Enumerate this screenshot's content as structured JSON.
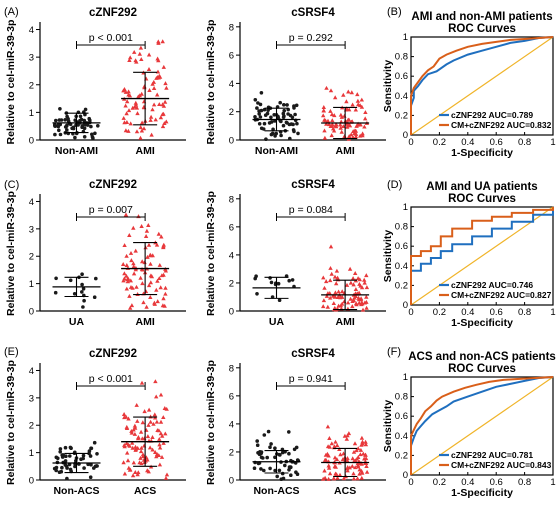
{
  "colors": {
    "black_group": "#1a1a1a",
    "red_group": "#e8383b",
    "roc_blue": "#1f6fbf",
    "roc_orange": "#d95f1a",
    "diagonal": "#f0b429"
  },
  "chart_data": [
    {
      "panel_label": "(A)",
      "type": "scatter",
      "title": "cZNF292",
      "ylabel": "Relative to cel-miR-39-3p",
      "categories": [
        "Non-AMI",
        "AMI"
      ],
      "yticks": [
        "0",
        "1",
        "2",
        "3",
        "4"
      ],
      "ylim": [
        0,
        4.2
      ],
      "p_value": "p < 0.001",
      "groups": [
        {
          "mean": 0.62,
          "sd": 0.35,
          "n": 70,
          "max": 2.2,
          "shape": "circle"
        },
        {
          "mean": 1.5,
          "sd": 0.95,
          "n": 85,
          "max": 3.8,
          "shape": "triangle"
        }
      ]
    },
    {
      "panel_label": "",
      "type": "scatter",
      "title": "cSRSF4",
      "ylabel": "Relative to cel-miR-39-3p",
      "categories": [
        "Non-AMI",
        "AMI"
      ],
      "yticks": [
        "0",
        "2",
        "4",
        "6",
        "8"
      ],
      "ylim": [
        0,
        8.2
      ],
      "p_value": "p = 0.292",
      "groups": [
        {
          "mean": 1.45,
          "sd": 0.8,
          "n": 70,
          "max": 3.4,
          "shape": "circle"
        },
        {
          "mean": 1.2,
          "sd": 1.1,
          "n": 85,
          "max": 6.2,
          "shape": "triangle"
        }
      ]
    },
    {
      "panel_label": "(B)",
      "type": "line",
      "title": "AMI and non-AMI patients ROC Curves",
      "xlabel": "1-Specificity",
      "ylabel": "Sensitivity",
      "xlim": [
        0,
        1
      ],
      "ylim": [
        0,
        1
      ],
      "xticks": [
        "0",
        "0.2",
        "0.4",
        "0.6",
        "0.8",
        "1"
      ],
      "yticks": [
        "0",
        "0.2",
        "0.4",
        "0.6",
        "0.8",
        "1"
      ],
      "series": [
        {
          "name": "cZNF292 AUC=0.789",
          "x": [
            0,
            0,
            0.02,
            0.02,
            0.05,
            0.08,
            0.12,
            0.18,
            0.25,
            0.3,
            0.4,
            0.5,
            0.6,
            0.7,
            0.8,
            0.9,
            1
          ],
          "y": [
            0,
            0.3,
            0.38,
            0.45,
            0.5,
            0.56,
            0.62,
            0.65,
            0.72,
            0.76,
            0.82,
            0.86,
            0.9,
            0.94,
            0.96,
            0.99,
            1
          ]
        },
        {
          "name": "CM+cZNF292 AUC=0.832",
          "x": [
            0,
            0,
            0.02,
            0.04,
            0.08,
            0.12,
            0.16,
            0.2,
            0.25,
            0.32,
            0.4,
            0.5,
            0.6,
            0.7,
            0.8,
            0.9,
            1
          ],
          "y": [
            0,
            0.4,
            0.48,
            0.52,
            0.6,
            0.66,
            0.7,
            0.78,
            0.82,
            0.86,
            0.9,
            0.93,
            0.95,
            0.97,
            0.98,
            0.99,
            1
          ]
        }
      ]
    },
    {
      "panel_label": "(C)",
      "type": "scatter",
      "title": "cZNF292",
      "ylabel": "Relative to cel-miR-39-3p",
      "categories": [
        "UA",
        "AMI"
      ],
      "yticks": [
        "0",
        "1",
        "2",
        "3",
        "4"
      ],
      "ylim": [
        0,
        4.2
      ],
      "p_value": "p = 0.007",
      "groups": [
        {
          "mean": 0.88,
          "sd": 0.35,
          "n": 14,
          "max": 1.4,
          "shape": "circle"
        },
        {
          "mean": 1.55,
          "sd": 0.95,
          "n": 85,
          "max": 3.8,
          "shape": "triangle"
        }
      ]
    },
    {
      "panel_label": "",
      "type": "scatter",
      "title": "cSRSF4",
      "ylabel": "Relative to cel-miR-39-3p",
      "categories": [
        "UA",
        "AMI"
      ],
      "yticks": [
        "0",
        "2",
        "4",
        "6",
        "8"
      ],
      "ylim": [
        0,
        8.2
      ],
      "p_value": "p = 0.084",
      "groups": [
        {
          "mean": 1.65,
          "sd": 0.75,
          "n": 14,
          "max": 2.5,
          "shape": "circle"
        },
        {
          "mean": 1.15,
          "sd": 1.05,
          "n": 85,
          "max": 6.0,
          "shape": "triangle"
        }
      ]
    },
    {
      "panel_label": "(D)",
      "type": "line",
      "title": "AMI and UA patients ROC Curves",
      "xlabel": "1-Specificity",
      "ylabel": "Sensitivity",
      "xlim": [
        0,
        1
      ],
      "ylim": [
        0,
        1
      ],
      "xticks": [
        "0",
        "0.2",
        "0.4",
        "0.6",
        "0.8",
        "1"
      ],
      "yticks": [
        "0",
        "0.2",
        "0.4",
        "0.6",
        "0.8",
        "1"
      ],
      "series": [
        {
          "name": "cZNF292 AUC=0.746",
          "x": [
            0,
            0,
            0.07,
            0.07,
            0.14,
            0.14,
            0.21,
            0.21,
            0.29,
            0.29,
            0.43,
            0.43,
            0.57,
            0.57,
            0.71,
            0.71,
            0.86,
            0.86,
            1,
            1
          ],
          "y": [
            0,
            0.35,
            0.35,
            0.42,
            0.42,
            0.48,
            0.48,
            0.55,
            0.55,
            0.62,
            0.62,
            0.7,
            0.7,
            0.78,
            0.78,
            0.85,
            0.85,
            0.92,
            0.92,
            1
          ]
        },
        {
          "name": "CM+cZNF292 AUC=0.827",
          "x": [
            0,
            0,
            0.07,
            0.07,
            0.14,
            0.14,
            0.21,
            0.21,
            0.29,
            0.29,
            0.43,
            0.43,
            0.57,
            0.57,
            0.71,
            0.71,
            0.86,
            0.86,
            1,
            1
          ],
          "y": [
            0,
            0.5,
            0.5,
            0.55,
            0.55,
            0.6,
            0.6,
            0.7,
            0.7,
            0.78,
            0.78,
            0.86,
            0.86,
            0.9,
            0.9,
            0.94,
            0.94,
            0.97,
            0.97,
            1
          ]
        }
      ]
    },
    {
      "panel_label": "(E)",
      "type": "scatter",
      "title": "cZNF292",
      "ylabel": "Relative to cel-miR-39-3p",
      "categories": [
        "Non-ACS",
        "ACS"
      ],
      "yticks": [
        "0",
        "1",
        "2",
        "3",
        "4"
      ],
      "ylim": [
        0,
        4.2
      ],
      "p_value": "p < 0.001",
      "groups": [
        {
          "mean": 0.62,
          "sd": 0.35,
          "n": 55,
          "max": 2.2,
          "shape": "circle"
        },
        {
          "mean": 1.4,
          "sd": 0.9,
          "n": 100,
          "max": 3.8,
          "shape": "triangle"
        }
      ]
    },
    {
      "panel_label": "",
      "type": "scatter",
      "title": "cSRSF4",
      "ylabel": "Relative to cel-miR-39-3p",
      "categories": [
        "Non-ACS",
        "ACS"
      ],
      "yticks": [
        "0",
        "2",
        "4",
        "6",
        "8"
      ],
      "ylim": [
        0,
        8.2
      ],
      "p_value": "p = 0.941",
      "groups": [
        {
          "mean": 1.3,
          "sd": 0.8,
          "n": 55,
          "max": 4.1,
          "shape": "circle"
        },
        {
          "mean": 1.25,
          "sd": 1.0,
          "n": 100,
          "max": 6.1,
          "shape": "triangle"
        }
      ]
    },
    {
      "panel_label": "(F)",
      "type": "line",
      "title": "ACS and non-ACS patients ROC Curves",
      "xlabel": "1-Specificity",
      "ylabel": "Sensitivity",
      "xlim": [
        0,
        1
      ],
      "ylim": [
        0,
        1
      ],
      "xticks": [
        "0",
        "0.2",
        "0.4",
        "0.6",
        "0.8",
        "1"
      ],
      "yticks": [
        "0",
        "0.2",
        "0.4",
        "0.6",
        "0.8",
        "1"
      ],
      "series": [
        {
          "name": "cZNF292 AUC=0.781",
          "x": [
            0,
            0,
            0.02,
            0.04,
            0.07,
            0.1,
            0.15,
            0.2,
            0.25,
            0.3,
            0.4,
            0.5,
            0.6,
            0.7,
            0.8,
            0.9,
            1
          ],
          "y": [
            0,
            0.3,
            0.38,
            0.45,
            0.5,
            0.55,
            0.62,
            0.66,
            0.7,
            0.75,
            0.8,
            0.85,
            0.9,
            0.93,
            0.96,
            0.99,
            1
          ]
        },
        {
          "name": "CM+cZNF292 AUC=0.843",
          "x": [
            0,
            0,
            0.02,
            0.04,
            0.07,
            0.1,
            0.14,
            0.18,
            0.22,
            0.3,
            0.38,
            0.46,
            0.55,
            0.65,
            0.75,
            0.88,
            1
          ],
          "y": [
            0,
            0.4,
            0.46,
            0.52,
            0.58,
            0.65,
            0.7,
            0.76,
            0.8,
            0.85,
            0.89,
            0.92,
            0.95,
            0.97,
            0.98,
            0.99,
            1
          ]
        }
      ]
    }
  ]
}
